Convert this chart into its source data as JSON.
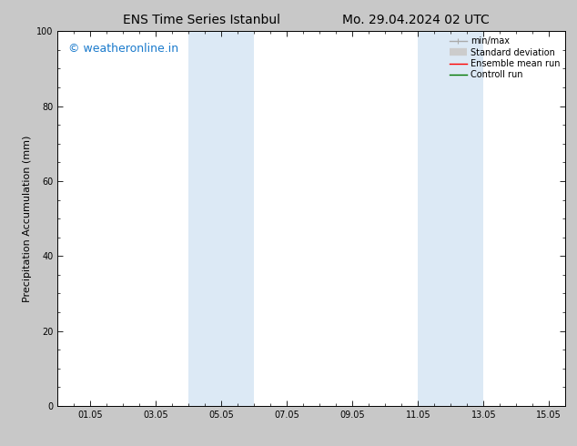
{
  "title_left": "ENS Time Series Istanbul",
  "title_right": "Mo. 29.04.2024 02 UTC",
  "ylabel": "Precipitation Accumulation (mm)",
  "ylim": [
    0,
    100
  ],
  "xlim": [
    0.0,
    15.5
  ],
  "xtick_positions": [
    1,
    3,
    5,
    7,
    9,
    11,
    13,
    15
  ],
  "xtick_labels": [
    "01.05",
    "03.05",
    "05.05",
    "07.05",
    "09.05",
    "11.05",
    "13.05",
    "15.05"
  ],
  "ytick_positions": [
    0,
    20,
    40,
    60,
    80,
    100
  ],
  "shaded_bands": [
    {
      "x_start": 4.0,
      "x_end": 6.0
    },
    {
      "x_start": 11.0,
      "x_end": 13.0
    }
  ],
  "shade_color": "#dce9f5",
  "watermark_text": "© weatheronline.in",
  "watermark_color": "#1a7acc",
  "watermark_fontsize": 9,
  "legend_items": [
    {
      "label": "min/max",
      "color": "#aaaaaa",
      "lw": 1.0,
      "style": "line_with_cap"
    },
    {
      "label": "Standard deviation",
      "color": "#cccccc",
      "lw": 6,
      "style": "thick"
    },
    {
      "label": "Ensemble mean run",
      "color": "#ff0000",
      "lw": 1.0,
      "style": "line"
    },
    {
      "label": "Controll run",
      "color": "#007700",
      "lw": 1.0,
      "style": "line"
    }
  ],
  "fig_bg_color": "#c8c8c8",
  "plot_bg_color": "#ffffff",
  "title_fontsize": 10,
  "axis_label_fontsize": 8,
  "tick_fontsize": 7,
  "legend_fontsize": 7
}
